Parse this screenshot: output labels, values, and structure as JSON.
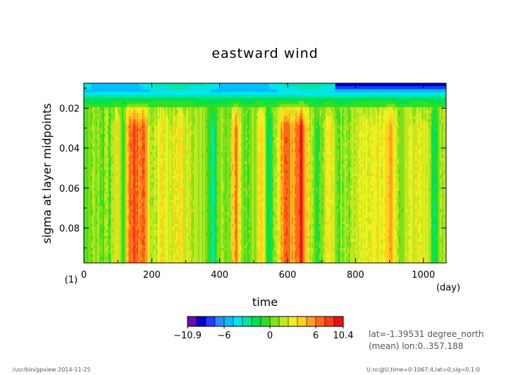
{
  "figure": {
    "title": "eastward wind",
    "info_line1": "lat=-1.39531 degree_north",
    "info_line2": "(mean) lon:0..357.188",
    "footer_left": "/usr/bin/gpview  2014-11-25",
    "footer_right": "U.nc@U,time=0:1067:4,lat=0,sig=0.1:0"
  },
  "chart_data": {
    "type": "heatmap",
    "title": "eastward wind",
    "xlabel": "time",
    "xunit": "(day)",
    "ylabel": "sigma at layer midpoints",
    "yunit": "(1)",
    "xlim": [
      0,
      1067
    ],
    "ylim": [
      0.0075,
      0.0975
    ],
    "y_inverted": true,
    "x_ticks": [
      "0",
      "200",
      "400",
      "600",
      "800",
      "1000"
    ],
    "y_ticks": [
      "0.02",
      "0.04",
      "0.06",
      "0.08"
    ],
    "colorbar": {
      "min": -10.9,
      "max": 10.4,
      "levels": [
        -10.9,
        -9.3,
        -8.4,
        -7.2,
        -6,
        -4.8,
        -3.6,
        -2.4,
        -1.2,
        0,
        1.2,
        2.4,
        3.6,
        4.8,
        6,
        7.2,
        8.4,
        10.4
      ],
      "colors": [
        "#6a0dad",
        "#0000cd",
        "#1e3cff",
        "#2e8bff",
        "#00bfff",
        "#00e5e5",
        "#00e5a0",
        "#00e050",
        "#33dd22",
        "#80e01a",
        "#c0e820",
        "#eef020",
        "#ffd21a",
        "#ffa020",
        "#ff6a1a",
        "#ff3a1a",
        "#ee1010"
      ],
      "labels": [
        "-10.9",
        "-6",
        "0",
        "6",
        "10.4"
      ]
    },
    "description_of_field": "Wind mostly 0 to 4 below sigma 0.02; strong westerly bursts (6-10) near days 140-200, 450, 580-670, 910; easterly (negative) top layer, strongest (-10) after day 750."
  }
}
